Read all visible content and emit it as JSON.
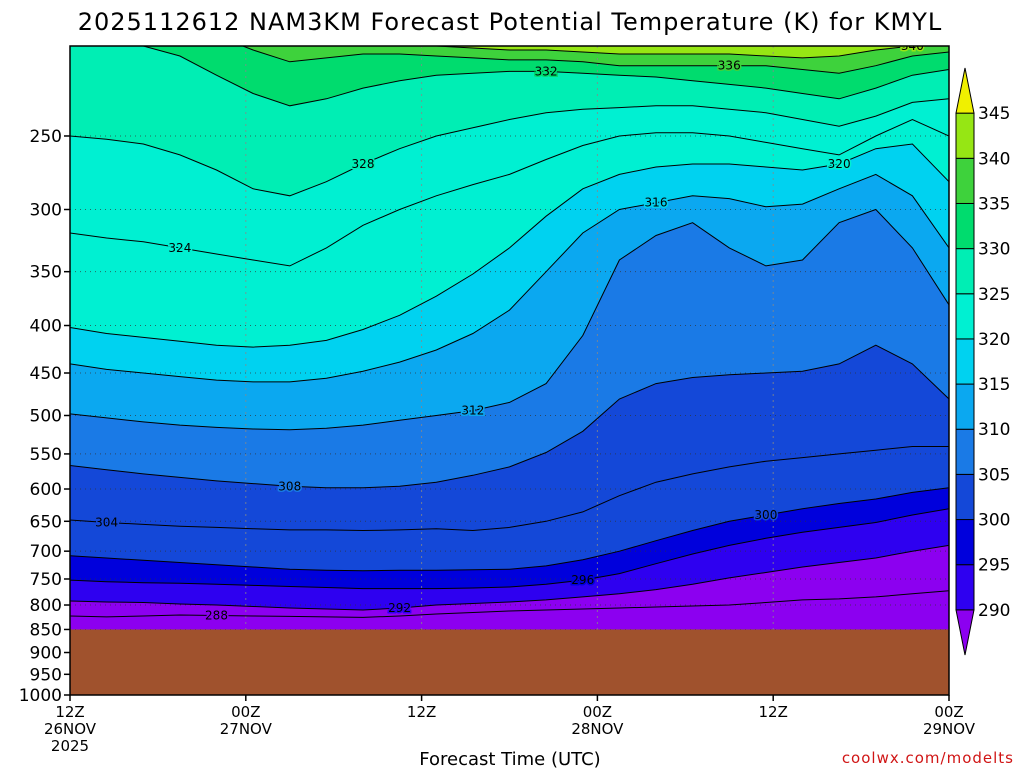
{
  "title": "2025112612 NAM3KM Forecast Potential Temperature (K) for KMYL",
  "credit": "coolwx.com/modelts",
  "chart_data": {
    "type": "contour",
    "title": "2025112612 NAM3KM Forecast Potential Temperature (K) for KMYL",
    "xlabel": "Forecast Time (UTC)",
    "ylabel": "",
    "y_scale": "log",
    "y_inverted": true,
    "ylim": [
      1000,
      200
    ],
    "yticks": [
      250,
      300,
      350,
      400,
      450,
      500,
      550,
      600,
      650,
      700,
      750,
      800,
      850,
      900,
      950,
      1000
    ],
    "xlim": [
      0,
      60
    ],
    "xticks": [
      {
        "x": 0,
        "line1": "12Z",
        "line2": "26NOV",
        "line3": "2025"
      },
      {
        "x": 12,
        "line1": "00Z",
        "line2": "27NOV",
        "line3": ""
      },
      {
        "x": 24,
        "line1": "12Z",
        "line2": "",
        "line3": ""
      },
      {
        "x": 36,
        "line1": "00Z",
        "line2": "28NOV",
        "line3": ""
      },
      {
        "x": 48,
        "line1": "12Z",
        "line2": "",
        "line3": ""
      },
      {
        "x": 60,
        "line1": "00Z",
        "line2": "29NOV",
        "line3": ""
      }
    ],
    "surface_pressure": 850,
    "surface_color": "#A0522D",
    "grid": true,
    "colorbar": {
      "levels": [
        290,
        295,
        300,
        305,
        310,
        315,
        320,
        325,
        330,
        335,
        340,
        345
      ],
      "colors": [
        "#8C00F0",
        "#2E00F0",
        "#0000DC",
        "#1448D8",
        "#1A7AE6",
        "#0BA8F0",
        "#00D2F0",
        "#00F0D2",
        "#00EEB4",
        "#00DC6E",
        "#3ED23C",
        "#96E614",
        "#F0F000"
      ]
    },
    "isentropes": [
      {
        "theta": 288,
        "pressure": [
          822,
          824,
          822,
          820,
          821,
          822,
          823,
          824,
          825,
          822,
          818,
          815,
          812,
          810,
          808,
          806,
          804,
          802,
          800,
          795,
          790,
          788,
          784,
          778,
          772
        ]
      },
      {
        "theta": 292,
        "pressure": [
          792,
          794,
          795,
          798,
          800,
          803,
          806,
          808,
          810,
          806,
          800,
          797,
          794,
          790,
          784,
          778,
          770,
          760,
          748,
          738,
          728,
          720,
          712,
          700,
          690
        ]
      },
      {
        "theta": 296,
        "pressure": [
          752,
          755,
          757,
          758,
          760,
          762,
          764,
          766,
          768,
          768,
          768,
          767,
          765,
          760,
          752,
          740,
          722,
          705,
          690,
          678,
          668,
          660,
          652,
          640,
          630
        ]
      },
      {
        "theta": 300,
        "pressure": [
          708,
          712,
          716,
          720,
          724,
          728,
          732,
          734,
          735,
          734,
          734,
          733,
          732,
          726,
          715,
          700,
          682,
          665,
          650,
          640,
          630,
          622,
          615,
          605,
          598
        ]
      },
      {
        "theta": 304,
        "pressure": [
          648,
          652,
          655,
          658,
          660,
          662,
          664,
          664,
          665,
          664,
          662,
          665,
          660,
          650,
          635,
          610,
          590,
          578,
          568,
          560,
          555,
          550,
          545,
          540,
          540
        ]
      },
      {
        "theta": 308,
        "pressure": [
          566,
          572,
          578,
          583,
          588,
          592,
          596,
          598,
          598,
          596,
          590,
          580,
          568,
          548,
          520,
          480,
          462,
          455,
          452,
          450,
          448,
          440,
          420,
          440,
          480
        ]
      },
      {
        "theta": 312,
        "pressure": [
          498,
          503,
          508,
          512,
          515,
          517,
          518,
          516,
          512,
          506,
          500,
          494,
          484,
          462,
          410,
          340,
          320,
          310,
          330,
          345,
          340,
          310,
          300,
          330,
          380
        ]
      },
      {
        "theta": 316,
        "pressure": [
          440,
          446,
          450,
          454,
          458,
          460,
          460,
          456,
          448,
          438,
          425,
          408,
          385,
          350,
          318,
          300,
          295,
          290,
          292,
          298,
          296,
          285,
          275,
          290,
          330
        ]
      },
      {
        "theta": 320,
        "pressure": [
          402,
          408,
          412,
          416,
          420,
          422,
          420,
          415,
          404,
          390,
          372,
          352,
          330,
          305,
          285,
          275,
          270,
          268,
          268,
          270,
          272,
          268,
          258,
          255,
          280
        ]
      },
      {
        "theta": 324,
        "pressure": [
          318,
          322,
          325,
          330,
          335,
          340,
          345,
          330,
          312,
          300,
          290,
          282,
          275,
          265,
          256,
          250,
          248,
          248,
          250,
          254,
          258,
          262,
          250,
          240,
          250
        ]
      },
      {
        "theta": 328,
        "pressure": [
          250,
          252,
          255,
          262,
          272,
          285,
          290,
          280,
          268,
          258,
          250,
          245,
          240,
          236,
          234,
          233,
          232,
          232,
          234,
          236,
          240,
          244,
          238,
          230,
          228
        ]
      },
      {
        "theta": 332,
        "pressure": [
          200,
          200,
          200,
          205,
          215,
          225,
          232,
          228,
          222,
          218,
          215,
          214,
          213,
          213,
          214,
          215,
          216,
          218,
          220,
          222,
          225,
          228,
          222,
          215,
          212
        ]
      },
      {
        "theta": 336,
        "pressure": [
          190,
          190,
          190,
          190,
          195,
          202,
          208,
          206,
          204,
          204,
          205,
          206,
          207,
          207,
          208,
          210,
          210,
          210,
          210,
          210,
          212,
          214,
          210,
          205,
          203
        ]
      },
      {
        "theta": 340,
        "pressure": [
          180,
          180,
          180,
          180,
          183,
          190,
          196,
          198,
          199,
          199,
          200,
          201,
          202,
          202,
          203,
          204,
          204,
          204,
          204,
          205,
          206,
          205,
          202,
          200,
          199
        ]
      }
    ],
    "isentrope_times": [
      0,
      2.5,
      5,
      7.5,
      10,
      12.5,
      15,
      17.5,
      20,
      22.5,
      25,
      27.5,
      30,
      32.5,
      35,
      37.5,
      40,
      42.5,
      45,
      47.5,
      50,
      52.5,
      55,
      57.5,
      60
    ],
    "contour_labels": [
      "288",
      "292",
      "296",
      "300",
      "304",
      "308",
      "312",
      "316",
      "320",
      "324",
      "328",
      "332",
      "336",
      "340"
    ]
  }
}
